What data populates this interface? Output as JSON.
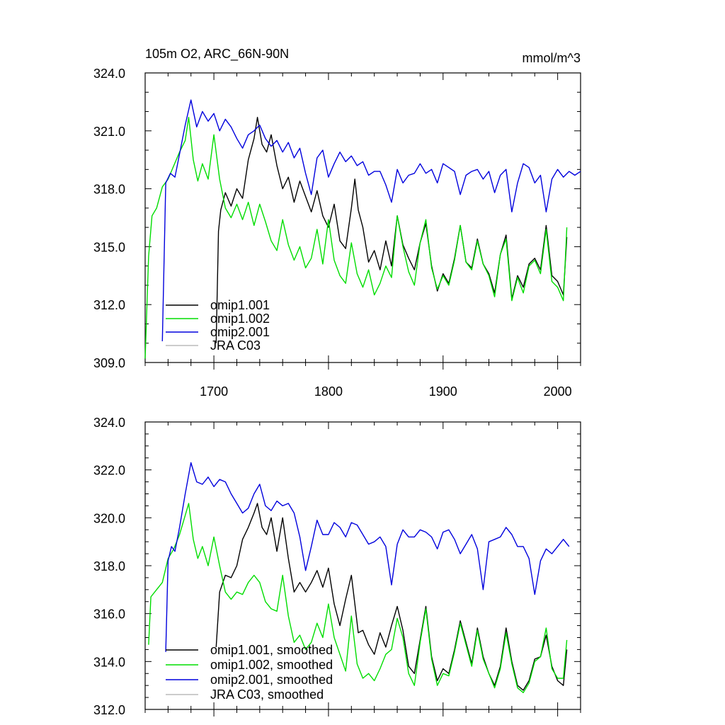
{
  "chart_data": [
    {
      "type": "line",
      "title": "105m O2, ARC_66N-90N",
      "units": "mmol/m^3",
      "xlim": [
        1640,
        2020
      ],
      "ylim": [
        309,
        324
      ],
      "x_ticks": [
        1700,
        1800,
        1900,
        2000
      ],
      "x_tick_labels": [
        "1700",
        "1800",
        "1900",
        "2000"
      ],
      "y_ticks": [
        309,
        312,
        315,
        318,
        321,
        324
      ],
      "y_tick_labels": [
        "309.0",
        "312.0",
        "315.0",
        "318.0",
        "321.0",
        "324.0"
      ],
      "legend": "bottom-left",
      "series": [
        {
          "name": "omip1.001",
          "color": "#000000",
          "x": [
            1702,
            1704,
            1706,
            1710,
            1715,
            1720,
            1725,
            1730,
            1735,
            1738,
            1742,
            1746,
            1750,
            1755,
            1760,
            1765,
            1770,
            1775,
            1780,
            1785,
            1790,
            1795,
            1800,
            1805,
            1810,
            1815,
            1820,
            1823,
            1826,
            1830,
            1835,
            1840,
            1845,
            1850,
            1855,
            1860,
            1865,
            1870,
            1875,
            1880,
            1885,
            1890,
            1895,
            1900,
            1905,
            1910,
            1915,
            1920,
            1925,
            1930,
            1935,
            1940,
            1945,
            1950,
            1955,
            1960,
            1965,
            1970,
            1975,
            1980,
            1985,
            1990,
            1995,
            2000,
            2005,
            2008
          ],
          "values": [
            310.0,
            315.8,
            316.9,
            317.8,
            317.1,
            318.0,
            317.5,
            319.5,
            320.6,
            321.7,
            320.3,
            319.9,
            320.8,
            319.2,
            318.0,
            318.6,
            317.3,
            318.4,
            317.6,
            316.8,
            317.9,
            316.6,
            316.0,
            317.2,
            315.3,
            314.9,
            317.0,
            318.5,
            316.9,
            316.0,
            314.2,
            314.8,
            313.8,
            315.3,
            314.0,
            316.6,
            315.1,
            314.4,
            313.8,
            315.2,
            316.2,
            314.0,
            312.7,
            313.6,
            313.1,
            314.4,
            316.1,
            314.2,
            313.9,
            315.4,
            314.1,
            313.6,
            312.6,
            314.6,
            315.6,
            312.3,
            313.5,
            312.9,
            314.1,
            314.4,
            313.8,
            316.1,
            313.5,
            313.2,
            312.5,
            315.5
          ]
        },
        {
          "name": "omip1.002",
          "color": "#00dd00",
          "x": [
            1640,
            1643,
            1646,
            1650,
            1655,
            1660,
            1665,
            1670,
            1675,
            1678,
            1682,
            1686,
            1690,
            1695,
            1700,
            1705,
            1710,
            1715,
            1720,
            1725,
            1730,
            1735,
            1740,
            1745,
            1750,
            1755,
            1760,
            1765,
            1770,
            1775,
            1780,
            1785,
            1790,
            1795,
            1800,
            1805,
            1810,
            1815,
            1820,
            1825,
            1830,
            1835,
            1840,
            1845,
            1850,
            1855,
            1860,
            1865,
            1870,
            1875,
            1880,
            1885,
            1890,
            1895,
            1900,
            1905,
            1910,
            1915,
            1920,
            1925,
            1930,
            1935,
            1940,
            1945,
            1950,
            1955,
            1960,
            1965,
            1970,
            1975,
            1980,
            1985,
            1990,
            1995,
            2000,
            2005,
            2008
          ],
          "values": [
            309.2,
            314.5,
            316.6,
            317.0,
            318.1,
            318.5,
            319.2,
            319.9,
            320.5,
            321.7,
            319.5,
            318.4,
            319.3,
            318.5,
            320.8,
            318.5,
            317.0,
            316.5,
            317.2,
            316.4,
            317.3,
            316.1,
            317.2,
            316.3,
            315.3,
            314.8,
            316.4,
            315.1,
            314.3,
            315.0,
            313.9,
            314.4,
            315.9,
            314.1,
            316.4,
            314.3,
            313.5,
            313.1,
            315.2,
            313.6,
            312.9,
            313.8,
            312.5,
            313.1,
            314.0,
            313.4,
            316.6,
            315.0,
            313.7,
            313.0,
            315.2,
            316.4,
            313.9,
            312.8,
            313.5,
            313.0,
            314.3,
            316.1,
            314.2,
            313.8,
            315.3,
            314.1,
            313.5,
            312.4,
            314.6,
            315.4,
            312.2,
            313.4,
            312.6,
            314.0,
            314.3,
            313.6,
            315.9,
            313.2,
            312.9,
            312.2,
            316.0
          ]
        },
        {
          "name": "omip2.001",
          "color": "#0000dd",
          "x": [
            1655,
            1658,
            1662,
            1666,
            1670,
            1675,
            1680,
            1685,
            1690,
            1695,
            1700,
            1705,
            1710,
            1715,
            1720,
            1725,
            1730,
            1735,
            1740,
            1745,
            1750,
            1755,
            1760,
            1765,
            1770,
            1775,
            1780,
            1785,
            1790,
            1795,
            1800,
            1805,
            1810,
            1815,
            1820,
            1825,
            1830,
            1835,
            1840,
            1845,
            1850,
            1855,
            1860,
            1865,
            1870,
            1875,
            1880,
            1885,
            1890,
            1895,
            1900,
            1905,
            1910,
            1915,
            1920,
            1925,
            1930,
            1935,
            1940,
            1945,
            1950,
            1955,
            1960,
            1965,
            1970,
            1975,
            1980,
            1985,
            1990,
            1995,
            2000,
            2005,
            2010,
            2015,
            2020
          ],
          "values": [
            310.1,
            318.3,
            318.8,
            318.6,
            319.8,
            321.3,
            322.6,
            321.2,
            322.0,
            321.5,
            321.9,
            321.0,
            321.6,
            321.2,
            320.6,
            320.1,
            320.8,
            321.0,
            321.3,
            320.6,
            320.2,
            320.5,
            319.9,
            320.4,
            319.6,
            320.1,
            318.8,
            317.7,
            319.6,
            320.0,
            318.6,
            319.3,
            319.9,
            319.4,
            319.7,
            319.2,
            319.4,
            318.7,
            318.9,
            318.9,
            318.2,
            317.3,
            319.0,
            318.3,
            318.7,
            318.8,
            319.3,
            318.8,
            319.0,
            318.3,
            319.3,
            319.1,
            318.9,
            317.7,
            318.7,
            318.9,
            319.0,
            318.5,
            318.9,
            317.8,
            318.7,
            319.0,
            316.8,
            318.3,
            319.3,
            319.1,
            318.3,
            318.7,
            316.8,
            318.5,
            319.0,
            318.6,
            318.9,
            318.7,
            318.9
          ]
        },
        {
          "name": "JRA C03",
          "color": "#bbbbbb",
          "x": [],
          "values": []
        }
      ]
    },
    {
      "type": "line",
      "title": "",
      "units": "",
      "xlim": [
        1640,
        2020
      ],
      "ylim": [
        312,
        324
      ],
      "x_ticks": [
        1700,
        1800,
        1900,
        2000
      ],
      "x_tick_labels": [],
      "y_ticks": [
        312,
        314,
        316,
        318,
        320,
        322,
        324
      ],
      "y_tick_labels": [
        "312.0",
        "314.0",
        "316.0",
        "318.0",
        "320.0",
        "322.0",
        "324.0"
      ],
      "legend": "bottom-left",
      "series": [
        {
          "name": "omip1.001, smoothed",
          "color": "#000000",
          "x": [
            1702,
            1705,
            1710,
            1715,
            1720,
            1725,
            1730,
            1735,
            1738,
            1742,
            1746,
            1750,
            1755,
            1760,
            1765,
            1770,
            1775,
            1780,
            1785,
            1790,
            1795,
            1800,
            1805,
            1810,
            1815,
            1820,
            1823,
            1826,
            1830,
            1835,
            1840,
            1845,
            1850,
            1855,
            1860,
            1865,
            1870,
            1875,
            1880,
            1885,
            1890,
            1895,
            1900,
            1905,
            1910,
            1915,
            1920,
            1925,
            1930,
            1935,
            1940,
            1945,
            1950,
            1955,
            1960,
            1965,
            1970,
            1975,
            1980,
            1985,
            1990,
            1995,
            2000,
            2005,
            2008
          ],
          "values": [
            314.6,
            316.9,
            317.6,
            317.5,
            318.0,
            319.1,
            319.6,
            320.2,
            320.6,
            319.6,
            319.3,
            320.0,
            318.6,
            320.0,
            318.3,
            316.9,
            317.3,
            316.9,
            317.3,
            317.8,
            317.1,
            317.9,
            316.4,
            315.5,
            316.6,
            317.6,
            316.4,
            315.2,
            315.3,
            314.7,
            314.3,
            315.2,
            314.6,
            315.5,
            316.3,
            315.3,
            313.8,
            313.5,
            314.9,
            316.3,
            314.2,
            313.2,
            313.7,
            313.5,
            314.5,
            315.7,
            314.8,
            313.9,
            315.4,
            314.2,
            313.5,
            313.0,
            313.8,
            315.4,
            314.0,
            313.0,
            312.8,
            313.2,
            314.1,
            314.2,
            315.1,
            313.8,
            313.2,
            313.0,
            314.5
          ]
        },
        {
          "name": "omip1.002, smoothed",
          "color": "#00dd00",
          "x": [
            1643,
            1645,
            1650,
            1655,
            1660,
            1665,
            1670,
            1675,
            1678,
            1682,
            1686,
            1690,
            1695,
            1700,
            1705,
            1710,
            1715,
            1720,
            1725,
            1730,
            1735,
            1740,
            1745,
            1750,
            1755,
            1760,
            1765,
            1770,
            1775,
            1780,
            1785,
            1790,
            1795,
            1800,
            1805,
            1810,
            1815,
            1820,
            1825,
            1830,
            1835,
            1840,
            1845,
            1850,
            1855,
            1860,
            1865,
            1870,
            1875,
            1880,
            1885,
            1890,
            1895,
            1900,
            1905,
            1910,
            1915,
            1920,
            1925,
            1930,
            1935,
            1940,
            1945,
            1950,
            1955,
            1960,
            1965,
            1970,
            1975,
            1980,
            1985,
            1990,
            1995,
            2000,
            2005,
            2008
          ],
          "values": [
            314.7,
            316.7,
            317.0,
            317.3,
            318.3,
            318.7,
            319.3,
            320.1,
            320.6,
            319.1,
            318.3,
            318.8,
            318.0,
            319.2,
            318.0,
            316.9,
            316.6,
            316.9,
            316.8,
            317.3,
            317.6,
            317.3,
            316.5,
            316.2,
            316.1,
            317.6,
            315.9,
            314.8,
            315.1,
            314.5,
            314.8,
            315.6,
            315.0,
            316.4,
            315.0,
            314.3,
            313.6,
            315.9,
            313.9,
            313.3,
            313.5,
            313.2,
            313.7,
            314.3,
            314.5,
            315.8,
            315.0,
            313.5,
            313.0,
            314.8,
            316.2,
            314.1,
            313.0,
            313.5,
            313.4,
            314.4,
            315.6,
            314.7,
            313.8,
            315.3,
            314.1,
            313.5,
            312.9,
            313.7,
            315.2,
            313.9,
            312.9,
            312.7,
            313.1,
            314.0,
            314.2,
            315.4,
            313.7,
            313.3,
            313.3,
            314.9
          ]
        },
        {
          "name": "omip2.001, smoothed",
          "color": "#0000dd",
          "x": [
            1658,
            1660,
            1663,
            1666,
            1670,
            1675,
            1680,
            1685,
            1690,
            1695,
            1700,
            1705,
            1710,
            1715,
            1720,
            1725,
            1730,
            1735,
            1740,
            1745,
            1750,
            1755,
            1760,
            1765,
            1770,
            1775,
            1780,
            1785,
            1790,
            1795,
            1800,
            1805,
            1810,
            1815,
            1820,
            1825,
            1830,
            1835,
            1840,
            1845,
            1850,
            1855,
            1860,
            1865,
            1870,
            1875,
            1880,
            1885,
            1890,
            1895,
            1900,
            1905,
            1910,
            1915,
            1920,
            1925,
            1930,
            1935,
            1940,
            1945,
            1950,
            1955,
            1960,
            1965,
            1970,
            1975,
            1980,
            1985,
            1990,
            1995,
            2000,
            2005,
            2010
          ],
          "values": [
            314.4,
            318.2,
            318.8,
            318.6,
            319.6,
            321.0,
            322.3,
            321.5,
            321.4,
            321.7,
            321.3,
            321.6,
            321.5,
            321.0,
            320.6,
            320.2,
            320.4,
            321.0,
            321.4,
            320.5,
            320.3,
            320.7,
            320.5,
            320.6,
            320.2,
            319.2,
            317.8,
            318.8,
            319.9,
            319.3,
            319.3,
            319.8,
            319.6,
            319.2,
            319.8,
            319.7,
            319.3,
            318.9,
            319.0,
            319.2,
            318.8,
            317.2,
            318.9,
            319.5,
            319.2,
            319.2,
            319.5,
            319.4,
            319.2,
            318.7,
            319.4,
            319.5,
            319.1,
            318.5,
            318.9,
            319.3,
            318.7,
            317.0,
            319.0,
            319.1,
            319.2,
            319.6,
            319.3,
            318.8,
            318.8,
            318.3,
            316.8,
            318.2,
            318.7,
            318.5,
            318.8,
            319.1,
            318.8
          ]
        },
        {
          "name": "JRA C03, smoothed",
          "color": "#bbbbbb",
          "x": [],
          "values": []
        }
      ]
    }
  ]
}
